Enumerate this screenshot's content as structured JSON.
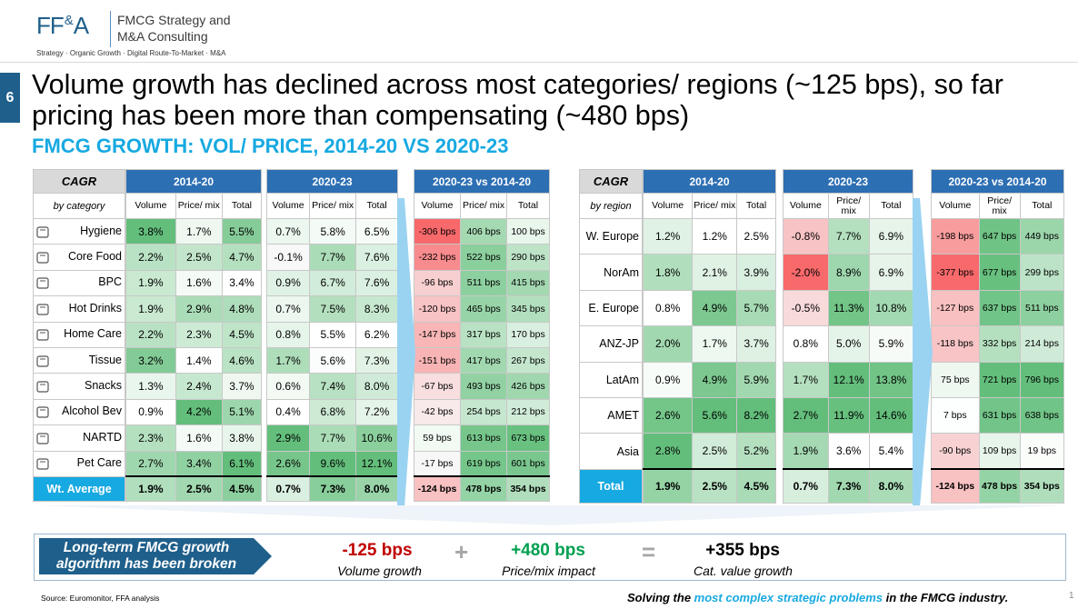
{
  "header": {
    "logo_ff": "FF",
    "logo_amp": "&",
    "logo_a": "A",
    "company_line1": "FMCG Strategy and",
    "company_line2": "M&A Consulting",
    "tagline": "Strategy · Organic Growth · Digital Route-To-Market · M&A",
    "page_badge": "6"
  },
  "title": "Volume growth has declined across most categories/ regions (~125 bps), so far pricing has been more than compensating (~480 bps)",
  "subtitle": "FMCG GROWTH: VOL/ PRICE, 2014-20 VS 2020-23",
  "left_table": {
    "cagr": "CAGR",
    "by": "by category",
    "period1": "2014-20",
    "period2": "2020-23",
    "period3": "2020-23 vs 2014-20",
    "col_volume": "Volume",
    "col_price": "Price/ mix",
    "col_total": "Total",
    "rows": [
      {
        "name": "Hygiene",
        "icon": "diaper-icon",
        "a": [
          "3.8%",
          "1.7%",
          "5.5%"
        ],
        "b": [
          "0.7%",
          "5.8%",
          "6.5%"
        ],
        "c": [
          "-306 bps",
          "406 bps",
          "100 bps"
        ]
      },
      {
        "name": "Core Food",
        "icon": "food-icon",
        "a": [
          "2.2%",
          "2.5%",
          "4.7%"
        ],
        "b": [
          "-0.1%",
          "7.7%",
          "7.6%"
        ],
        "c": [
          "-232 bps",
          "522 bps",
          "290 bps"
        ]
      },
      {
        "name": "BPC",
        "icon": "bottle-icon",
        "a": [
          "1.9%",
          "1.6%",
          "3.4%"
        ],
        "b": [
          "0.9%",
          "6.7%",
          "7.6%"
        ],
        "c": [
          "-96 bps",
          "511 bps",
          "415 bps"
        ]
      },
      {
        "name": "Hot Drinks",
        "icon": "coffee-icon",
        "a": [
          "1.9%",
          "2.9%",
          "4.8%"
        ],
        "b": [
          "0.7%",
          "7.5%",
          "8.3%"
        ],
        "c": [
          "-120 bps",
          "465 bps",
          "345 bps"
        ]
      },
      {
        "name": "Home Care",
        "icon": "cleaner-icon",
        "a": [
          "2.2%",
          "2.3%",
          "4.5%"
        ],
        "b": [
          "0.8%",
          "5.5%",
          "6.2%"
        ],
        "c": [
          "-147 bps",
          "317 bps",
          "170 bps"
        ]
      },
      {
        "name": "Tissue",
        "icon": "tissue-icon",
        "a": [
          "3.2%",
          "1.4%",
          "4.6%"
        ],
        "b": [
          "1.7%",
          "5.6%",
          "7.3%"
        ],
        "c": [
          "-151 bps",
          "417 bps",
          "267 bps"
        ]
      },
      {
        "name": "Snacks",
        "icon": "snacks-icon",
        "a": [
          "1.3%",
          "2.4%",
          "3.7%"
        ],
        "b": [
          "0.6%",
          "7.4%",
          "8.0%"
        ],
        "c": [
          "-67 bps",
          "493 bps",
          "426 bps"
        ]
      },
      {
        "name": "Alcohol Bev",
        "icon": "alcohol-icon",
        "a": [
          "0.9%",
          "4.2%",
          "5.1%"
        ],
        "b": [
          "0.4%",
          "6.8%",
          "7.2%"
        ],
        "c": [
          "-42 bps",
          "254 bps",
          "212 bps"
        ]
      },
      {
        "name": "NARTD",
        "icon": "drinks-icon",
        "a": [
          "2.3%",
          "1.6%",
          "3.8%"
        ],
        "b": [
          "2.9%",
          "7.7%",
          "10.6%"
        ],
        "c": [
          "59 bps",
          "613 bps",
          "673 bps"
        ]
      },
      {
        "name": "Pet Care",
        "icon": "pet-icon",
        "a": [
          "2.7%",
          "3.4%",
          "6.1%"
        ],
        "b": [
          "2.6%",
          "9.6%",
          "12.1%"
        ],
        "c": [
          "-17 bps",
          "619 bps",
          "601 bps"
        ]
      }
    ],
    "total": {
      "name": "Wt. Average",
      "a": [
        "1.9%",
        "2.5%",
        "4.5%"
      ],
      "b": [
        "0.7%",
        "7.3%",
        "8.0%"
      ],
      "c": [
        "-124 bps",
        "478 bps",
        "354 bps"
      ]
    }
  },
  "right_table": {
    "cagr": "CAGR",
    "by": "by region",
    "period1": "2014-20",
    "period2": "2020-23",
    "period3": "2020-23 vs 2014-20",
    "col_volume": "Volume",
    "col_price": "Price/ mix",
    "col_total": "Total",
    "rows": [
      {
        "name": "W. Europe",
        "a": [
          "1.2%",
          "1.2%",
          "2.5%"
        ],
        "b": [
          "-0.8%",
          "7.7%",
          "6.9%"
        ],
        "c": [
          "-198 bps",
          "647 bps",
          "449 bps"
        ]
      },
      {
        "name": "NorAm",
        "a": [
          "1.8%",
          "2.1%",
          "3.9%"
        ],
        "b": [
          "-2.0%",
          "8.9%",
          "6.9%"
        ],
        "c": [
          "-377 bps",
          "677 bps",
          "299 bps"
        ]
      },
      {
        "name": "E. Europe",
        "a": [
          "0.8%",
          "4.9%",
          "5.7%"
        ],
        "b": [
          "-0.5%",
          "11.3%",
          "10.8%"
        ],
        "c": [
          "-127 bps",
          "637 bps",
          "511 bps"
        ]
      },
      {
        "name": "ANZ-JP",
        "a": [
          "2.0%",
          "1.7%",
          "3.7%"
        ],
        "b": [
          "0.8%",
          "5.0%",
          "5.9%"
        ],
        "c": [
          "-118 bps",
          "332 bps",
          "214 bps"
        ]
      },
      {
        "name": "LatAm",
        "a": [
          "0.9%",
          "4.9%",
          "5.9%"
        ],
        "b": [
          "1.7%",
          "12.1%",
          "13.8%"
        ],
        "c": [
          "75 bps",
          "721 bps",
          "796 bps"
        ]
      },
      {
        "name": "AMET",
        "a": [
          "2.6%",
          "5.6%",
          "8.2%"
        ],
        "b": [
          "2.7%",
          "11.9%",
          "14.6%"
        ],
        "c": [
          "7 bps",
          "631 bps",
          "638 bps"
        ]
      },
      {
        "name": "Asia",
        "a": [
          "2.8%",
          "2.5%",
          "5.2%"
        ],
        "b": [
          "1.9%",
          "3.6%",
          "5.4%"
        ],
        "c": [
          "-90 bps",
          "109 bps",
          "19 bps"
        ]
      }
    ],
    "total": {
      "name": "Total",
      "a": [
        "1.9%",
        "2.5%",
        "4.5%"
      ],
      "b": [
        "0.7%",
        "7.3%",
        "8.0%"
      ],
      "c": [
        "-124 bps",
        "478 bps",
        "354 bps"
      ]
    }
  },
  "banner": {
    "label": "Long-term FMCG growth algorithm has been broken",
    "vol_value": "-125 bps",
    "vol_caption": "Volume growth",
    "plus": "+",
    "price_value": "+480 bps",
    "price_caption": "Price/mix impact",
    "equals": "=",
    "total_value": "+355 bps",
    "total_caption": "Cat. value growth",
    "colors": {
      "negative": "#c00000",
      "positive": "#00a050",
      "neutral": "#000000"
    }
  },
  "footer": {
    "source": "Source: Euromonitor, FFA analysis",
    "tag_pre": "Solving the ",
    "tag_highlight": "most complex strategic problems",
    "tag_post": " in the FMCG industry.",
    "page": "1"
  },
  "colors": {
    "header_blue": "#2d6fb3",
    "accent_cyan": "#17a9e1",
    "navy": "#1f5f8b",
    "heat_green": "#63be7b",
    "heat_red": "#f8696b"
  }
}
